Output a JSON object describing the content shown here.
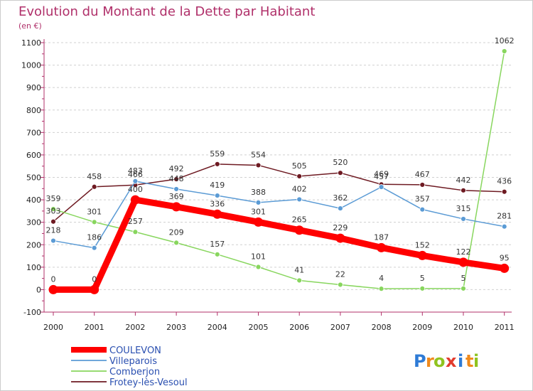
{
  "chart_data": {
    "type": "line",
    "title": "Evolution du Montant de la Dette par Habitant",
    "subtitle": "(en €)",
    "xlabel": "",
    "ylabel": "",
    "ylim": [
      -100,
      1100
    ],
    "yticks": [
      -100,
      0,
      100,
      200,
      300,
      400,
      500,
      600,
      700,
      800,
      900,
      1000,
      1100
    ],
    "categories": [
      "2000",
      "2001",
      "2002",
      "2003",
      "2004",
      "2005",
      "2006",
      "2007",
      "2008",
      "2009",
      "2010",
      "2011"
    ],
    "grid": "horizontal-dashed",
    "legend_position": "bottom-left",
    "series": [
      {
        "name": "Frotey-lès-Vesoul",
        "color": "#6e1a22",
        "values": [
          303,
          458,
          466,
          492,
          559,
          554,
          505,
          520,
          469,
          467,
          442,
          436
        ]
      },
      {
        "name": "Comberjon",
        "color": "#88d65e",
        "values": [
          359,
          301,
          257,
          209,
          157,
          101,
          41,
          22,
          4,
          5,
          5,
          1062
        ]
      },
      {
        "name": "Villeparois",
        "color": "#5b9bd5",
        "values": [
          218,
          186,
          483,
          448,
          419,
          388,
          402,
          362,
          457,
          357,
          315,
          281
        ]
      },
      {
        "name": "COULEVON",
        "color": "#ff0000",
        "values": [
          0,
          0,
          400,
          369,
          336,
          301,
          265,
          229,
          187,
          152,
          122,
          95
        ]
      }
    ],
    "legend_order": [
      "COULEVON",
      "Villeparois",
      "Comberjon",
      "Frotey-lès-Vesoul"
    ]
  },
  "logo": {
    "letters": [
      "P",
      "r",
      "o",
      "x",
      "i",
      "t",
      "i"
    ],
    "colors": [
      "#2e7bd6",
      "#f08a1c",
      "#8fc31f",
      "#e23b2e",
      "#2e7bd6",
      "#f08a1c",
      "#8fc31f"
    ]
  }
}
